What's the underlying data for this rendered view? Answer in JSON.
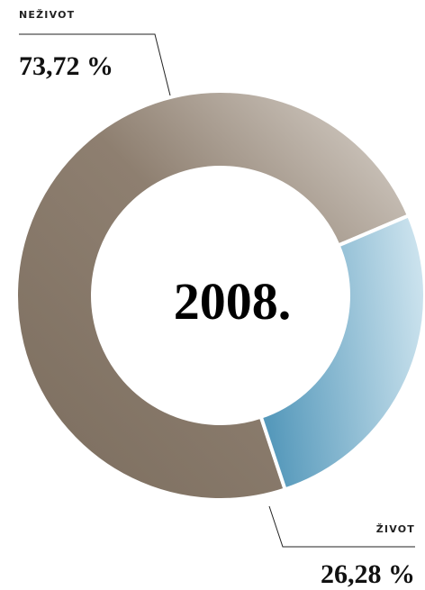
{
  "chart_data": {
    "type": "pie",
    "title": "2008.",
    "center_label": "2008.",
    "slices": [
      {
        "name": "NEŽIVOT",
        "value": 73.72,
        "label": "73,72 %",
        "color_light": "#dcd6cf",
        "color_dark": "#7b6d5e"
      },
      {
        "name": "ŽIVOT",
        "value": 26.28,
        "label": "26,28 %",
        "color_light": "#cce3ee",
        "color_dark": "#5699bb"
      }
    ],
    "legend": "none",
    "grid": false
  }
}
